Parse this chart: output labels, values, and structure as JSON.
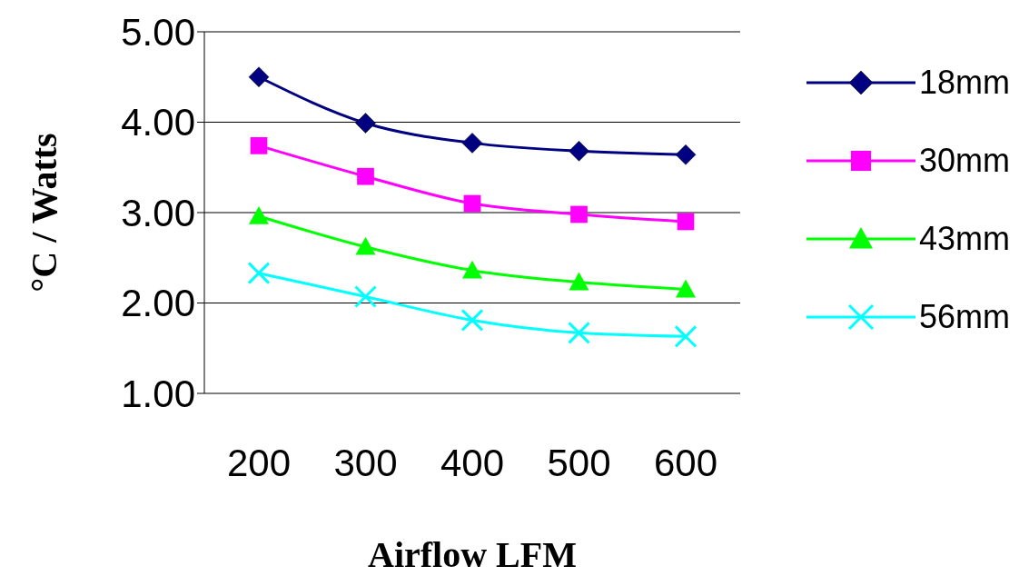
{
  "chart_data": {
    "type": "line",
    "xlabel": "Airflow LFM",
    "ylabel": "°C / Watts",
    "categories": [
      "200",
      "300",
      "400",
      "500",
      "600"
    ],
    "series": [
      {
        "name": "18mm",
        "color": "#000080",
        "marker": "diamond",
        "values": [
          4.5,
          3.99,
          3.77,
          3.68,
          3.64
        ]
      },
      {
        "name": "30mm",
        "color": "#ff00ff",
        "marker": "square",
        "values": [
          3.74,
          3.4,
          3.1,
          2.98,
          2.9
        ]
      },
      {
        "name": "43mm",
        "color": "#00ff00",
        "marker": "triangle",
        "values": [
          2.96,
          2.62,
          2.36,
          2.23,
          2.15
        ]
      },
      {
        "name": "56mm",
        "color": "#00ffff",
        "marker": "cross",
        "values": [
          2.33,
          2.07,
          1.81,
          1.67,
          1.63
        ]
      }
    ],
    "ylim": [
      1,
      5
    ],
    "yticks": [
      {
        "value": 1,
        "label": "1.00"
      },
      {
        "value": 2,
        "label": "2.00"
      },
      {
        "value": 3,
        "label": "3.00"
      },
      {
        "value": 4,
        "label": "4.00"
      },
      {
        "value": 5,
        "label": "5.00"
      }
    ],
    "grid": "y",
    "legend": "right",
    "line_style": "solid"
  }
}
